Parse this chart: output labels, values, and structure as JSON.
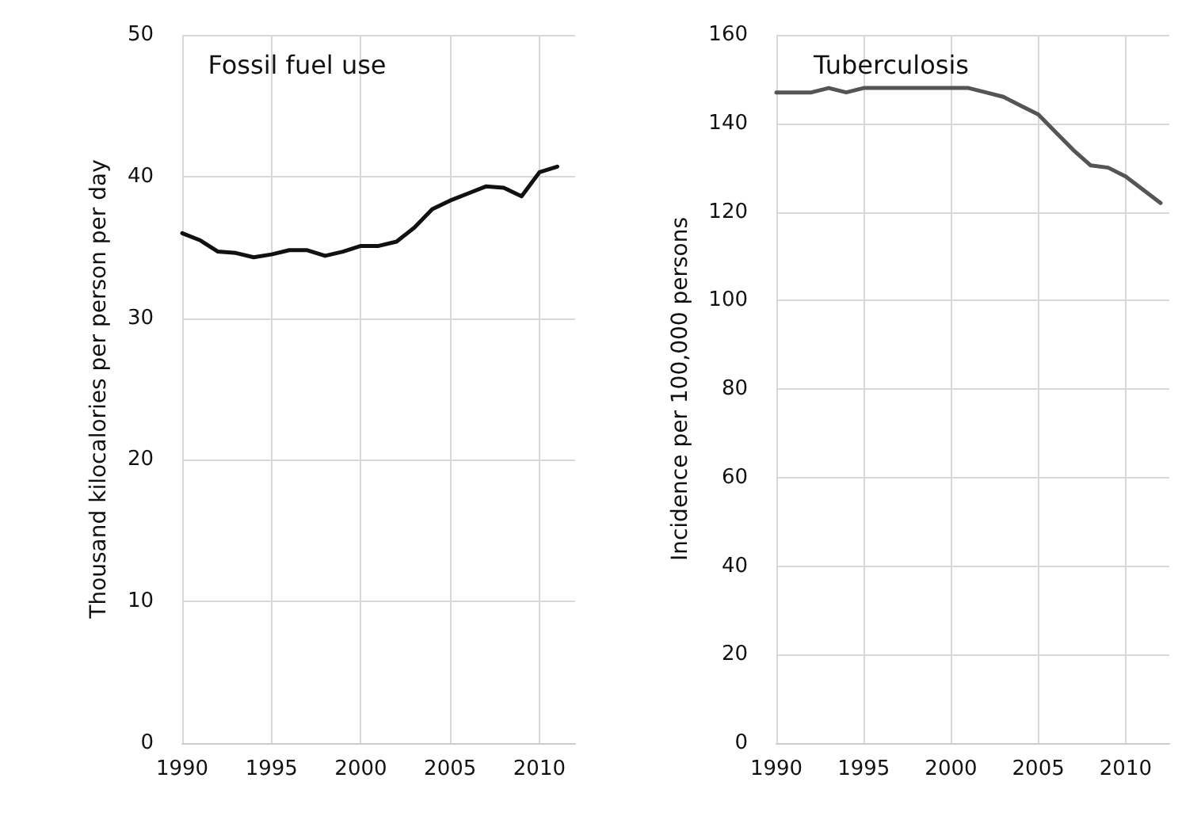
{
  "chart_data": [
    {
      "type": "line",
      "title": "Fossil fuel use",
      "ylabel": "Thousand kilocalories per person per day",
      "x": [
        1990,
        1991,
        1992,
        1993,
        1994,
        1995,
        1996,
        1997,
        1998,
        1999,
        2000,
        2001,
        2002,
        2003,
        2004,
        2005,
        2006,
        2007,
        2008,
        2009,
        2010,
        2011
      ],
      "series": [
        {
          "color": "#111111",
          "values": [
            36.0,
            35.5,
            34.7,
            34.6,
            34.3,
            34.5,
            34.8,
            34.8,
            34.4,
            34.7,
            35.1,
            35.1,
            35.4,
            36.4,
            37.7,
            38.3,
            38.8,
            39.3,
            39.2,
            38.6,
            40.3,
            40.7
          ]
        }
      ],
      "xlim": [
        1990,
        2012
      ],
      "xticks": [
        1990,
        1995,
        2000,
        2005,
        2010
      ],
      "ylim": [
        0,
        50
      ],
      "yticks": [
        0,
        10,
        20,
        30,
        40,
        50
      ],
      "grid": true,
      "marker": "none",
      "line_style": "solid"
    },
    {
      "type": "line",
      "title": "Tuberculosis",
      "ylabel": "Incidence per 100,000 persons",
      "x": [
        1990,
        1991,
        1992,
        1993,
        1994,
        1995,
        1996,
        1997,
        1998,
        1999,
        2000,
        2001,
        2002,
        2003,
        2004,
        2005,
        2006,
        2007,
        2008,
        2009,
        2010,
        2011,
        2012
      ],
      "series": [
        {
          "color": "#555555",
          "values": [
            147,
            147,
            147,
            148,
            147,
            148,
            148,
            148,
            148,
            148,
            148,
            148,
            147,
            146,
            144,
            142,
            138,
            134,
            130.5,
            130,
            128,
            125,
            122
          ]
        }
      ],
      "xlim": [
        1990,
        2012.5
      ],
      "xticks": [
        1990,
        1995,
        2000,
        2005,
        2010
      ],
      "ylim": [
        0,
        160
      ],
      "yticks": [
        0,
        20,
        40,
        60,
        80,
        100,
        120,
        140,
        160
      ],
      "grid": true,
      "marker": "none",
      "line_style": "solid"
    }
  ]
}
